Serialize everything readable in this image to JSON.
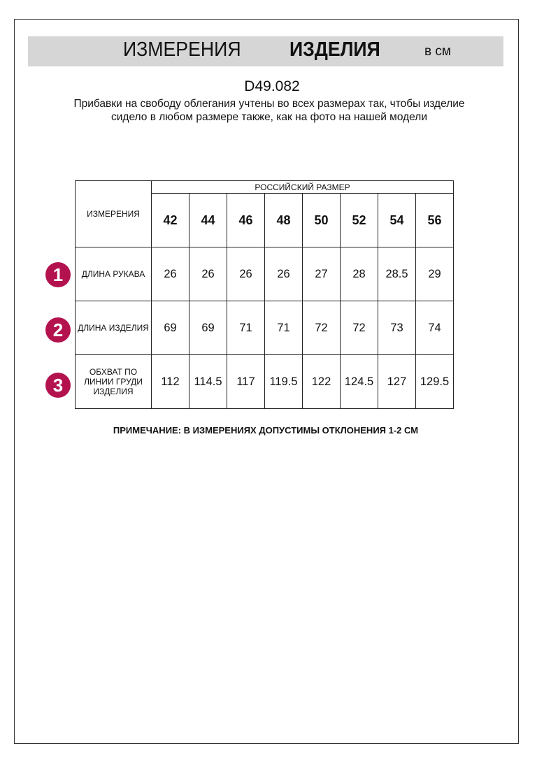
{
  "header": {
    "title_regular": "ИЗМЕРЕНИЯ",
    "title_bold": "ИЗДЕЛИЯ",
    "unit": "в см"
  },
  "article": "D49.082",
  "description": "Прибавки на свободу облегания учтены во всех размерах так, чтобы изделие сидело в любом размере также, как на фото на нашей модели",
  "table": {
    "measure_header": "ИЗМЕРЕНИЯ",
    "size_group_header": "РОССИЙСКИЙ РАЗМЕР",
    "sizes": [
      "42",
      "44",
      "46",
      "48",
      "50",
      "52",
      "54",
      "56"
    ],
    "rows": [
      {
        "num": "1",
        "label": "ДЛИНА РУКАВА",
        "values": [
          "26",
          "26",
          "26",
          "26",
          "27",
          "28",
          "28.5",
          "29"
        ]
      },
      {
        "num": "2",
        "label": "ДЛИНА ИЗДЕЛИЯ",
        "values": [
          "69",
          "69",
          "71",
          "71",
          "72",
          "72",
          "73",
          "74"
        ]
      },
      {
        "num": "3",
        "label": "ОБХВАТ ПО ЛИНИИ ГРУДИ ИЗДЕЛИЯ",
        "values": [
          "112",
          "114.5",
          "117",
          "119.5",
          "122",
          "124.5",
          "127",
          "129.5"
        ]
      }
    ]
  },
  "note": "ПРИМЕЧАНИЕ: В ИЗМЕРЕНИЯХ ДОПУСТИМЫ ОТКЛОНЕНИЯ 1-2 СМ",
  "colors": {
    "badge": "#b3124f",
    "title_bar": "#d6d6d6"
  }
}
